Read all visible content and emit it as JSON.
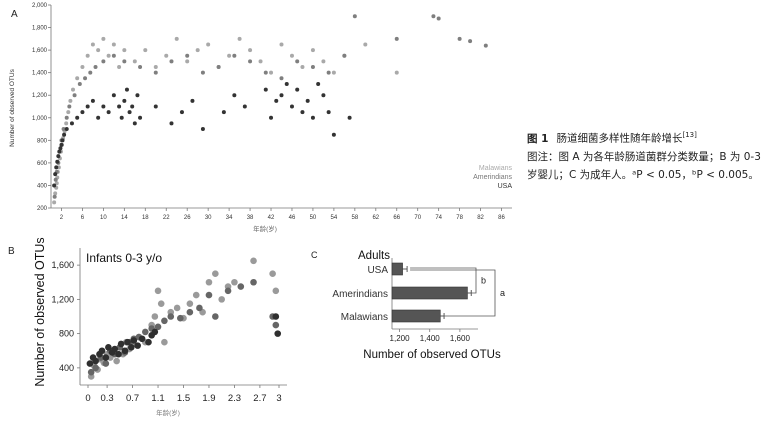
{
  "caption": {
    "figure_label": "图 1",
    "title": "肠道细菌多样性随年龄增长",
    "ref": "[13]",
    "note": "图注：图 A 为各年龄肠道菌群分类数量；B 为 0-3 岁婴儿；C 为成年人。ᵃP < 0.05，ᵇP < 0.005。"
  },
  "chart_data": [
    {
      "id": "A",
      "type": "scatter",
      "panel_label": "A",
      "ylabel": "Number of observed OTUs",
      "xlabel": "年龄(岁)",
      "xlim": [
        0,
        88
      ],
      "ylim": [
        200,
        2000
      ],
      "xticks": [
        2,
        6,
        10,
        14,
        18,
        22,
        26,
        30,
        34,
        38,
        42,
        46,
        50,
        54,
        58,
        62,
        66,
        70,
        74,
        78,
        82,
        86
      ],
      "yticks": [
        200,
        400,
        600,
        800,
        1000,
        1200,
        1400,
        1600,
        1800,
        2000
      ],
      "legend": [
        "Malawians",
        "Amerindians",
        "USA"
      ],
      "legend_position": "bottom-right",
      "series": [
        {
          "name": "Malawians",
          "color": "#a9a9a9",
          "x": [
            0.6,
            0.8,
            1.0,
            1.1,
            1.2,
            1.3,
            1.5,
            1.7,
            1.9,
            2.1,
            2.3,
            2.6,
            2.9,
            3.3,
            3.7,
            4.2,
            5,
            6,
            7,
            8,
            9,
            10,
            11,
            12,
            13,
            14,
            16,
            18,
            20,
            22,
            24,
            26,
            28,
            30,
            32,
            34,
            36,
            38,
            40,
            42,
            44,
            46,
            48,
            50,
            52,
            54,
            56,
            60,
            66
          ],
          "y": [
            250,
            330,
            380,
            420,
            470,
            520,
            560,
            640,
            700,
            760,
            820,
            880,
            950,
            1050,
            1150,
            1250,
            1350,
            1450,
            1550,
            1650,
            1600,
            1700,
            1550,
            1650,
            1450,
            1600,
            1500,
            1600,
            1450,
            1550,
            1700,
            1500,
            1600,
            1650,
            1450,
            1550,
            1700,
            1600,
            1500,
            1400,
            1650,
            1550,
            1450,
            1600,
            1500,
            1400,
            1550,
            1650,
            1400
          ]
        },
        {
          "name": "Amerindians",
          "color": "#7f7f7f",
          "x": [
            0.7,
            0.9,
            1.1,
            1.4,
            1.6,
            2.0,
            2.4,
            3.0,
            3.5,
            4.5,
            5.5,
            6.5,
            7.5,
            8.5,
            10,
            12,
            14,
            17,
            20,
            23,
            26,
            29,
            32,
            35,
            38,
            41,
            44,
            47,
            50,
            53,
            56,
            58,
            66,
            73,
            74,
            78,
            80,
            83
          ],
          "y": [
            300,
            450,
            520,
            600,
            700,
            800,
            900,
            1000,
            1100,
            1200,
            1300,
            1350,
            1400,
            1450,
            1500,
            1550,
            1500,
            1450,
            1400,
            1500,
            1550,
            1400,
            1450,
            1550,
            1500,
            1400,
            1350,
            1500,
            1450,
            1400,
            1550,
            1900,
            1700,
            1900,
            1880,
            1700,
            1680,
            1640
          ]
        },
        {
          "name": "USA",
          "color": "#333333",
          "x": [
            0.6,
            0.8,
            1.0,
            1.2,
            1.4,
            1.6,
            1.8,
            2.0,
            2.2,
            2.5,
            3,
            4,
            5,
            6,
            7,
            8,
            9,
            10,
            11,
            12,
            13,
            13.5,
            14,
            14.5,
            15,
            15.5,
            16,
            16.5,
            17,
            20,
            23,
            25,
            27,
            29,
            33,
            35,
            37,
            41,
            42,
            43,
            44,
            45,
            46,
            47,
            48,
            49,
            50,
            51,
            52,
            53,
            54,
            57
          ],
          "y": [
            400,
            500,
            560,
            610,
            660,
            700,
            730,
            760,
            800,
            850,
            900,
            950,
            1000,
            1050,
            1100,
            1150,
            1000,
            1100,
            1050,
            1200,
            1100,
            1000,
            1150,
            1250,
            1050,
            1100,
            950,
            1200,
            1000,
            1100,
            950,
            1050,
            1150,
            900,
            1050,
            1200,
            1100,
            1250,
            1000,
            1150,
            1200,
            1300,
            1100,
            1250,
            1050,
            1150,
            1000,
            1300,
            1200,
            1050,
            850,
            1000
          ]
        }
      ]
    },
    {
      "id": "B",
      "type": "scatter",
      "panel_label": "B",
      "title": "Infants 0-3 y/o",
      "ylabel": "Number of observed OTUs",
      "xlabel": "年龄(岁)",
      "xlim": [
        0,
        3
      ],
      "ylim": [
        200,
        1800
      ],
      "xticks": [
        "0",
        "0.3",
        "0.7",
        "1.1",
        "1.5",
        "1.9",
        "2.3",
        "2.7",
        "3"
      ],
      "yticks": [
        "400",
        "800",
        "1,200",
        "1,600"
      ],
      "series": [
        {
          "name": "Malawians",
          "color": "#9a9a9a",
          "x": [
            0.05,
            0.1,
            0.15,
            0.2,
            0.25,
            0.3,
            0.35,
            0.4,
            0.45,
            0.5,
            0.55,
            0.6,
            0.65,
            0.7,
            0.8,
            0.9,
            1.0,
            1.05,
            1.1,
            1.15,
            1.2,
            1.3,
            1.4,
            1.5,
            1.6,
            1.7,
            1.8,
            1.9,
            2.0,
            2.1,
            2.2,
            2.3,
            2.6,
            2.9,
            2.95
          ],
          "y": [
            300,
            420,
            380,
            500,
            460,
            560,
            520,
            600,
            480,
            640,
            560,
            700,
            620,
            680,
            760,
            700,
            900,
            1000,
            1300,
            1150,
            700,
            1050,
            1100,
            980,
            1150,
            1250,
            1050,
            1400,
            1500,
            1200,
            1350,
            1400,
            1650,
            1500,
            1300
          ]
        },
        {
          "name": "Amerindians",
          "color": "#666666",
          "x": [
            0.05,
            0.12,
            0.2,
            0.28,
            0.35,
            0.42,
            0.5,
            0.58,
            0.65,
            0.72,
            0.8,
            0.9,
            1.0,
            1.1,
            1.2,
            1.3,
            1.45,
            1.6,
            1.75,
            1.9,
            2.0,
            2.2,
            2.4,
            2.6,
            2.9,
            2.95
          ],
          "y": [
            350,
            400,
            520,
            450,
            600,
            560,
            640,
            580,
            700,
            740,
            760,
            820,
            860,
            880,
            950,
            1000,
            980,
            1050,
            1100,
            1250,
            1000,
            1300,
            1350,
            1400,
            1000,
            900
          ]
        },
        {
          "name": "USA",
          "color": "#2f2f2f",
          "x": [
            0.03,
            0.08,
            0.12,
            0.18,
            0.22,
            0.28,
            0.32,
            0.38,
            0.42,
            0.48,
            0.52,
            0.58,
            0.62,
            0.68,
            0.72,
            0.78,
            0.85,
            0.95,
            1.0,
            1.05,
            2.95,
            2.98
          ],
          "y": [
            450,
            520,
            480,
            560,
            600,
            520,
            640,
            580,
            620,
            560,
            680,
            600,
            700,
            640,
            720,
            660,
            740,
            700,
            780,
            820,
            1000,
            800
          ]
        }
      ]
    },
    {
      "id": "C",
      "type": "bar",
      "orientation": "horizontal",
      "panel_label": "C",
      "title": "Adults",
      "xlabel": "Number of observed OTUs",
      "xlim": [
        1150,
        1720
      ],
      "xticks": [
        "1,200",
        "1,400",
        "1,600"
      ],
      "categories": [
        "USA",
        "Amerindians",
        "Malawians"
      ],
      "values": [
        1220,
        1650,
        1470
      ],
      "errors": [
        30,
        25,
        25
      ],
      "color": "#555555",
      "significance": [
        {
          "between": [
            "USA",
            "Amerindians"
          ],
          "label": "b"
        },
        {
          "between": [
            "USA",
            "Malawians"
          ],
          "label": "a"
        }
      ]
    }
  ]
}
